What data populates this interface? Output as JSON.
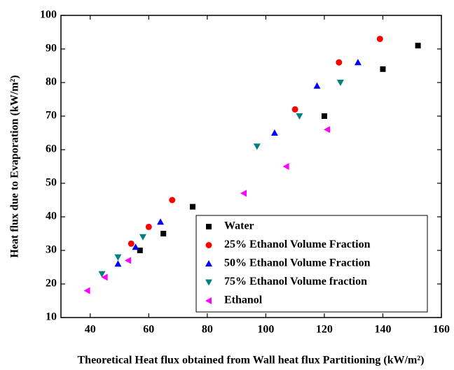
{
  "chart_data": {
    "type": "scatter",
    "xlabel": "Theoretical Heat flux obtained from Wall heat flux Partitioning (kW/m²)",
    "ylabel": "Heat flux due to Evaporation (kW/m²)",
    "xlim": [
      30,
      160
    ],
    "xticks": [
      40,
      60,
      80,
      100,
      120,
      140,
      160
    ],
    "ylim": [
      10,
      100
    ],
    "yticks": [
      10,
      20,
      30,
      40,
      50,
      60,
      70,
      80,
      90,
      100
    ],
    "legend": "lower right",
    "series": [
      {
        "name": "Water",
        "color": "#000000",
        "marker": "square",
        "x": [
          57,
          65,
          75,
          120,
          140,
          152
        ],
        "values": [
          30,
          35,
          43,
          70,
          84,
          91
        ]
      },
      {
        "name": "25% Ethanol Volume Fraction",
        "color": "#ff0000",
        "marker": "circle",
        "x": [
          54,
          60,
          68,
          110,
          125,
          139
        ],
        "values": [
          32,
          37,
          45,
          72,
          86,
          93
        ]
      },
      {
        "name": "50% Ethanol Volume Fraction",
        "color": "#0000ff",
        "marker": "triangle-up",
        "x": [
          49.5,
          55.5,
          64,
          103,
          117.5,
          131.5
        ],
        "values": [
          26,
          31,
          38.5,
          65,
          79,
          86
        ]
      },
      {
        "name": "75% Ethanol Volume fraction",
        "color": "#008080",
        "marker": "triangle-down",
        "x": [
          44,
          49.5,
          58,
          97,
          111.5,
          125.5
        ],
        "values": [
          23,
          28,
          34,
          61,
          70,
          80
        ]
      },
      {
        "name": "Ethanol",
        "color": "#ff00ff",
        "marker": "triangle-left",
        "x": [
          39,
          45,
          53,
          92.5,
          107,
          121
        ],
        "values": [
          18,
          22,
          27,
          47,
          55,
          66
        ]
      }
    ]
  }
}
